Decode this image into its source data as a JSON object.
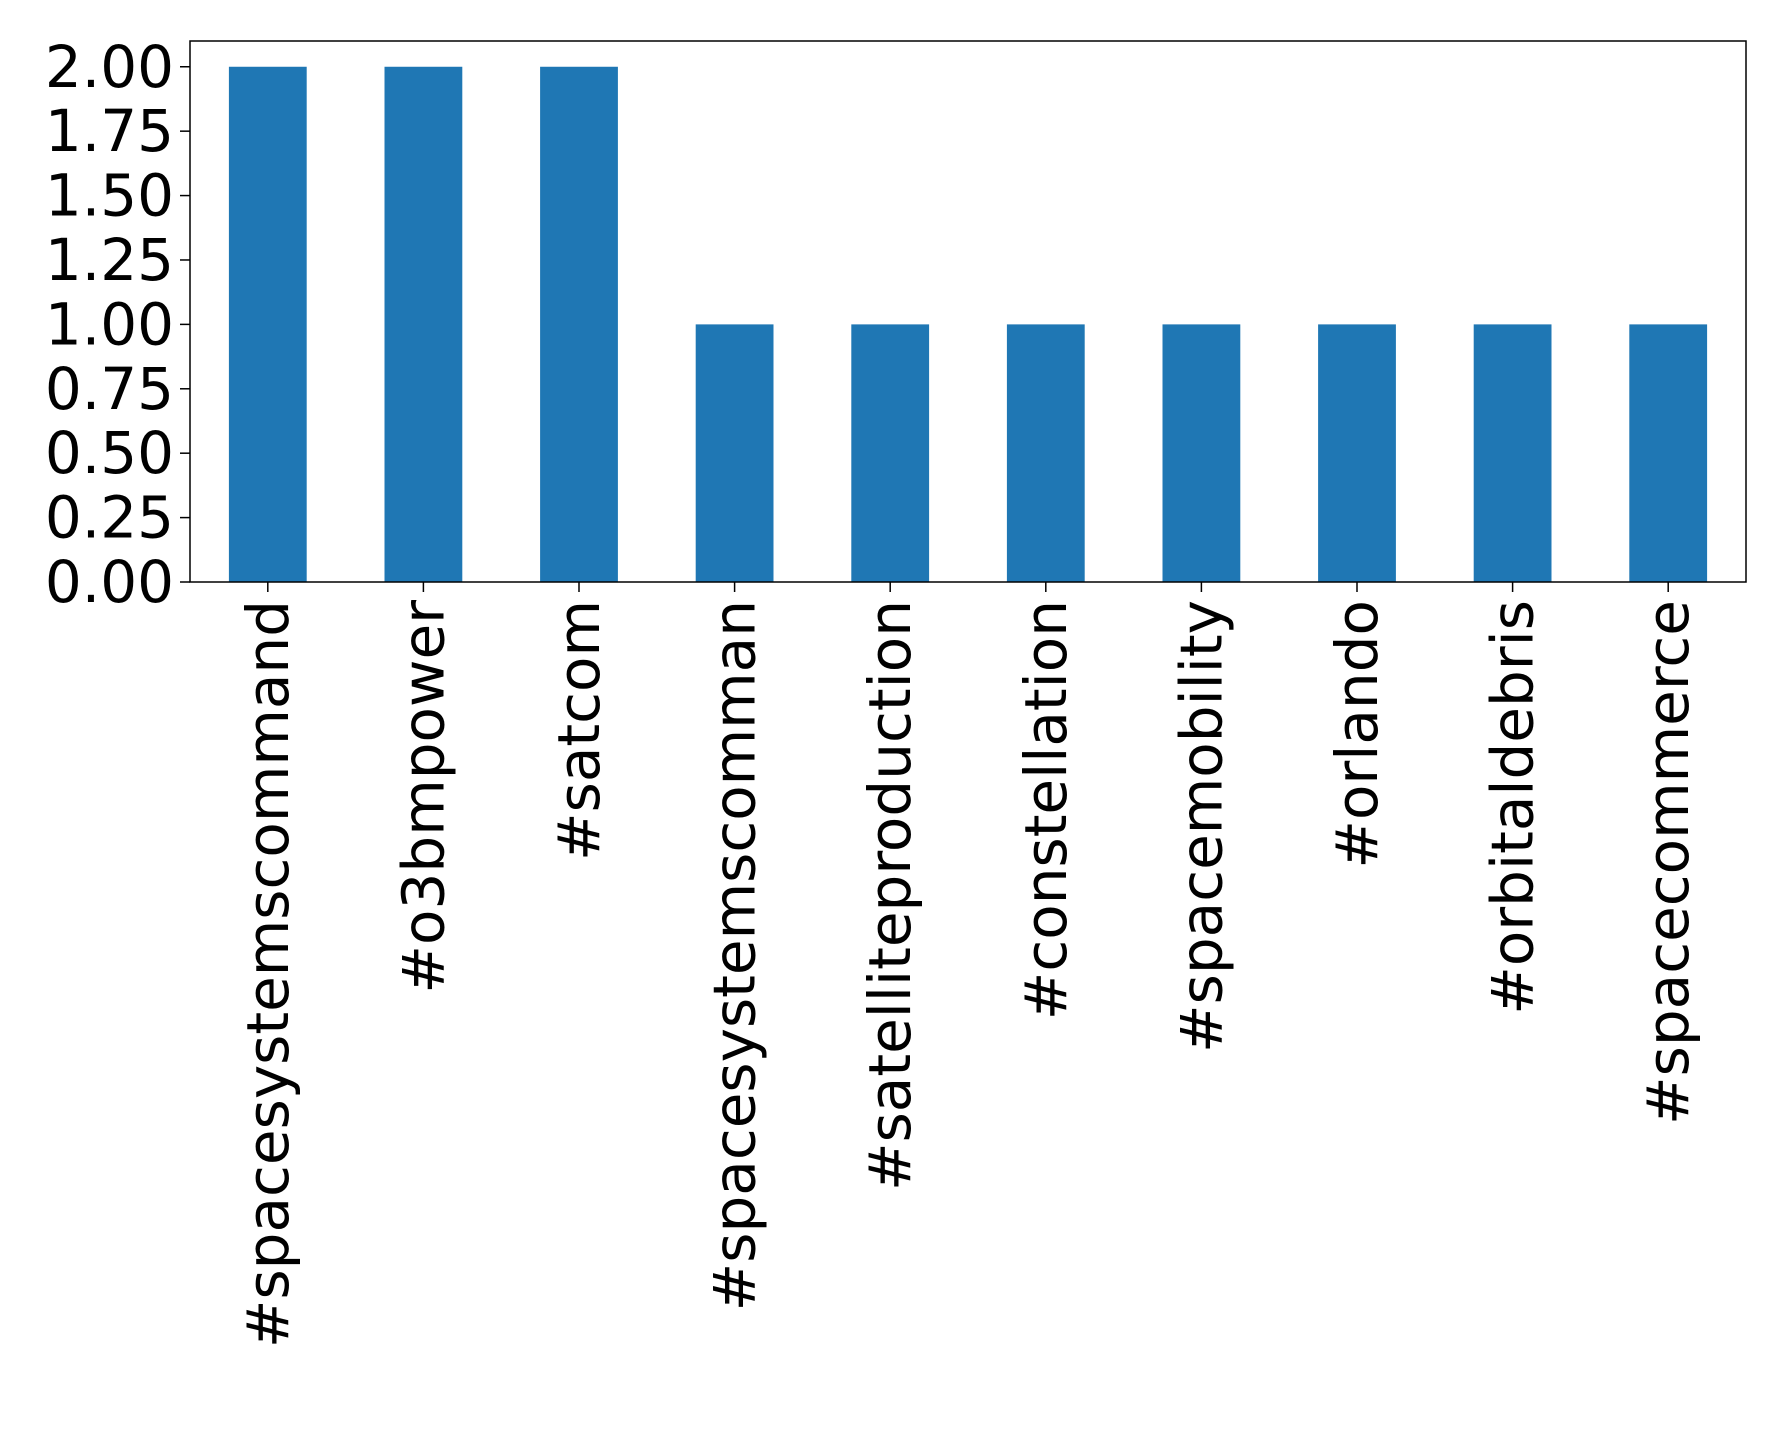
{
  "chart_data": {
    "type": "bar",
    "title": "",
    "xlabel": "",
    "ylabel": "",
    "categories": [
      "#spacesystemscommand",
      "#o3bmpower",
      "#satcom",
      "#spacesystemscomman",
      "#satelliteproduction",
      "#constellation",
      "#spacemobility",
      "#orlando",
      "#orbitaldebris",
      "#spacecommerce"
    ],
    "values": [
      2,
      2,
      2,
      1,
      1,
      1,
      1,
      1,
      1,
      1
    ],
    "ylim": [
      0,
      2.1
    ],
    "yticks": [
      "0.00",
      "0.25",
      "0.50",
      "0.75",
      "1.00",
      "1.25",
      "1.50",
      "1.75",
      "2.00"
    ],
    "ytick_values": [
      0,
      0.25,
      0.5,
      0.75,
      1.0,
      1.25,
      1.5,
      1.75,
      2.0
    ],
    "bar_color": "#1f77b4",
    "grid": false,
    "legend": "none"
  }
}
